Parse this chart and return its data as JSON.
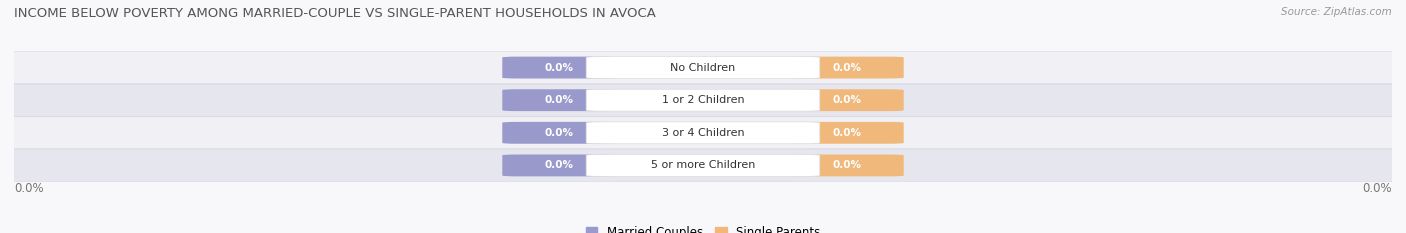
{
  "title": "INCOME BELOW POVERTY AMONG MARRIED-COUPLE VS SINGLE-PARENT HOUSEHOLDS IN AVOCA",
  "source": "Source: ZipAtlas.com",
  "categories": [
    "No Children",
    "1 or 2 Children",
    "3 or 4 Children",
    "5 or more Children"
  ],
  "married_values": [
    0.0,
    0.0,
    0.0,
    0.0
  ],
  "single_values": [
    0.0,
    0.0,
    0.0,
    0.0
  ],
  "married_color": "#9999cc",
  "single_color": "#f0b87a",
  "row_bg_light": "#f0f0f5",
  "row_bg_dark": "#e6e6ee",
  "fig_bg": "#f8f8fb",
  "title_fontsize": 9.5,
  "source_fontsize": 7.5,
  "bar_fontsize": 7.5,
  "label_fontsize": 8,
  "tick_fontsize": 8.5,
  "legend_married": "Married Couples",
  "legend_single": "Single Parents",
  "figsize": [
    14.06,
    2.33
  ],
  "dpi": 100
}
